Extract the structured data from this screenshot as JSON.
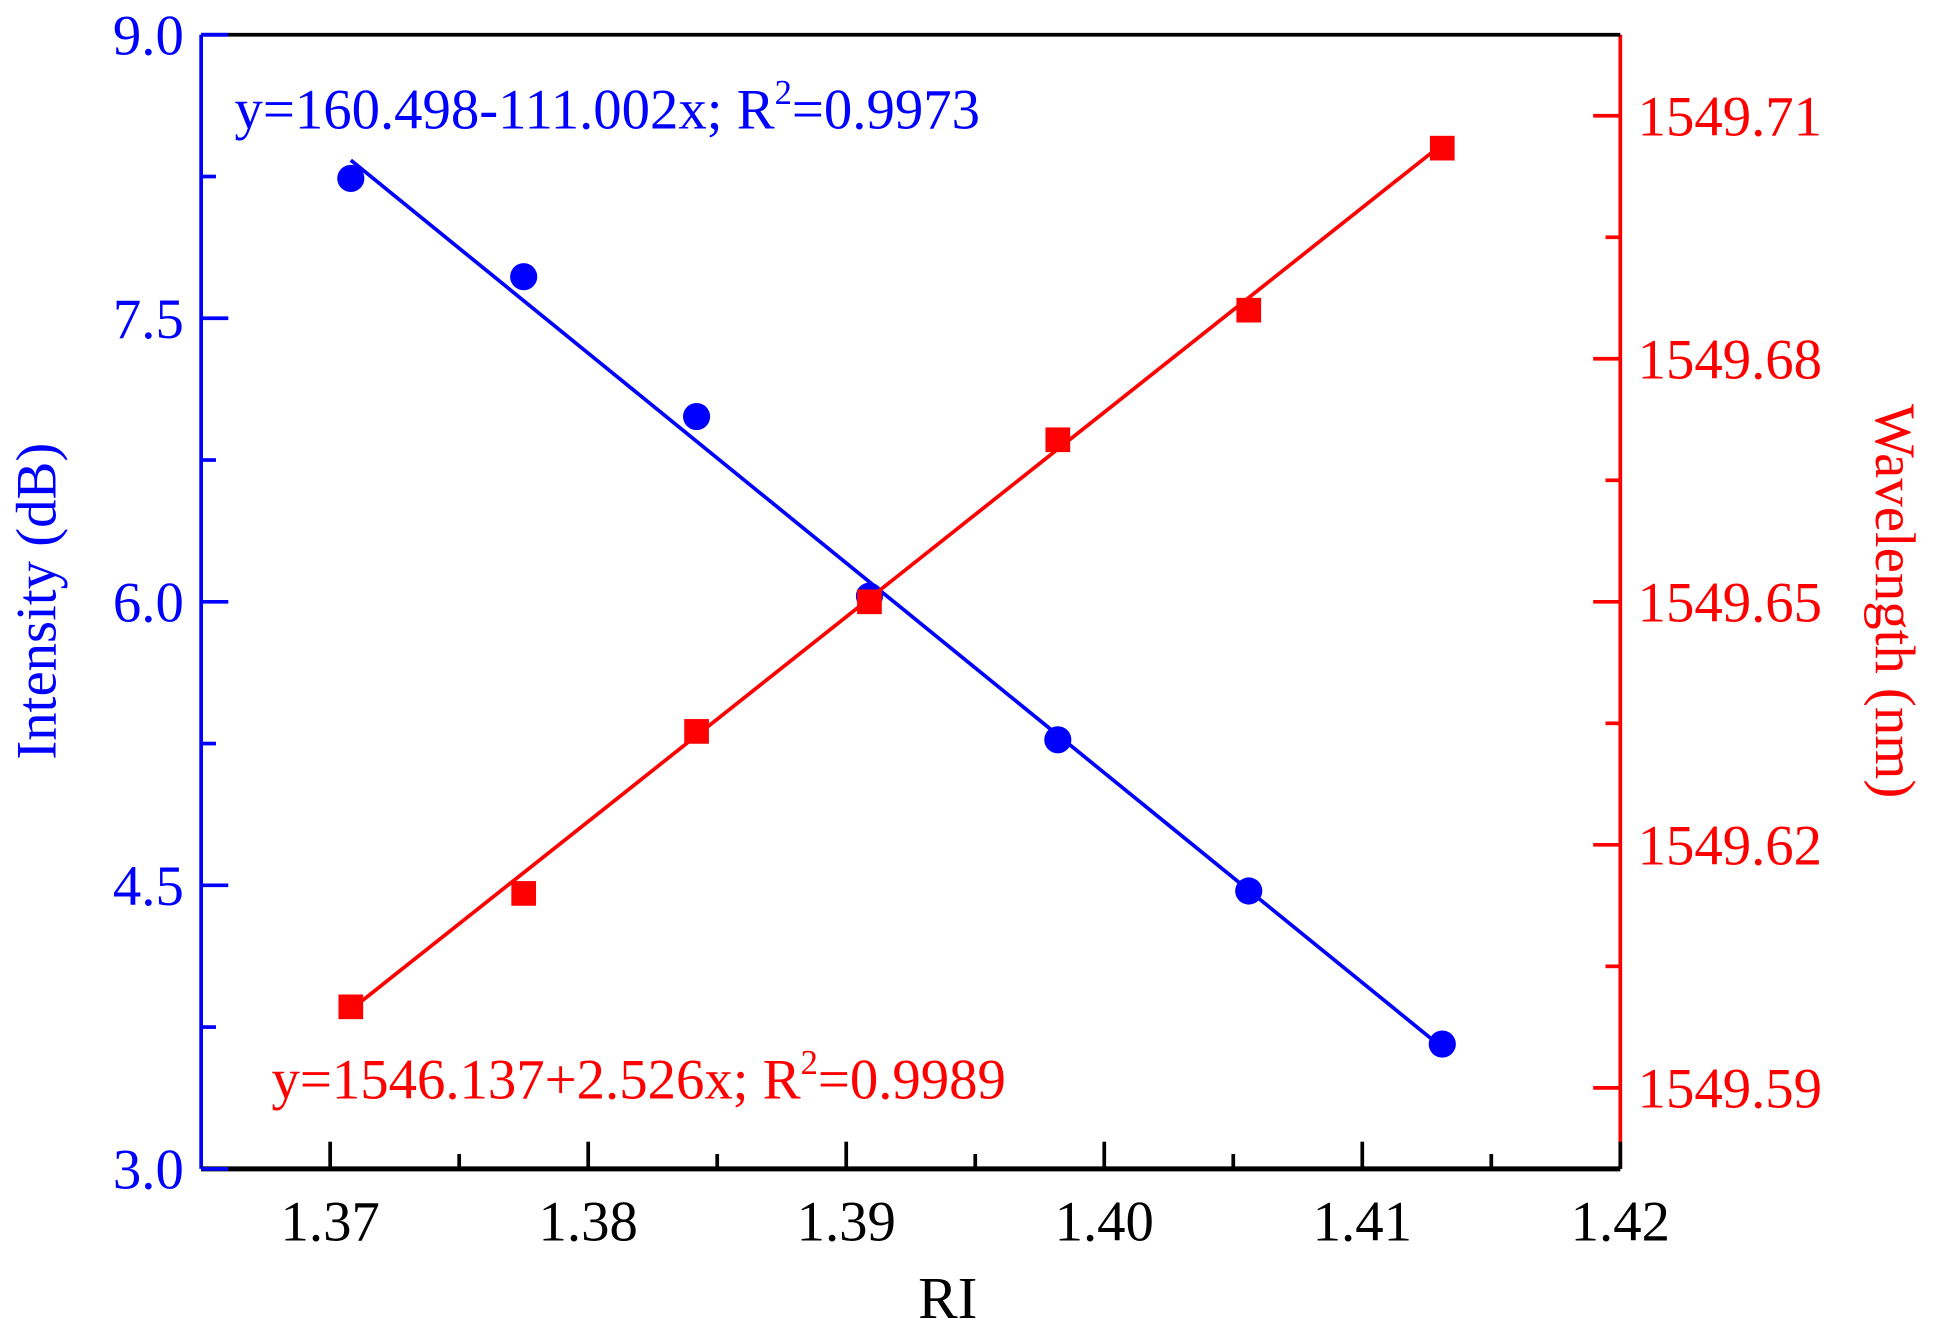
{
  "chart_data": {
    "type": "scatter",
    "xlabel": "RI",
    "ylabel_left": "Intensity (dB)",
    "ylabel_right": "Wavelength (nm)",
    "xlim": [
      1.365,
      1.42
    ],
    "ylim_left": [
      3.0,
      9.0
    ],
    "ylim_right": [
      1549.58,
      1549.72
    ],
    "x_ticks": [
      "1.37",
      "1.38",
      "1.39",
      "1.40",
      "1.41",
      "1.42"
    ],
    "y_left_ticks": [
      "3.0",
      "4.5",
      "6.0",
      "7.5",
      "9.0"
    ],
    "y_right_ticks": [
      "1549.59",
      "1549.62",
      "1549.65",
      "1549.68",
      "1549.71"
    ],
    "grid": false,
    "x": [
      1.3708,
      1.3775,
      1.3842,
      1.3909,
      1.3982,
      1.4056,
      1.4131
    ],
    "series": [
      {
        "axis": "left",
        "marker": "circle",
        "color": "#0000ff",
        "values": [
          8.24,
          7.72,
          6.98,
          6.03,
          5.27,
          4.47,
          3.66
        ],
        "fit": {
          "intercept": 160.498,
          "slope": -111.002,
          "label_main": "y=160.498-111.002x; R",
          "label_sup": "2",
          "label_end": "=0.9973"
        }
      },
      {
        "axis": "right",
        "marker": "square",
        "color": "#ff0000",
        "values": [
          1549.6,
          1549.614,
          1549.634,
          1549.65,
          1549.67,
          1549.686,
          1549.706
        ],
        "fit": {
          "intercept": 1546.137,
          "slope": 2.526,
          "label_main": "y=1546.137+2.526x; R",
          "label_sup": "2",
          "label_end": "=0.9989"
        }
      }
    ]
  }
}
